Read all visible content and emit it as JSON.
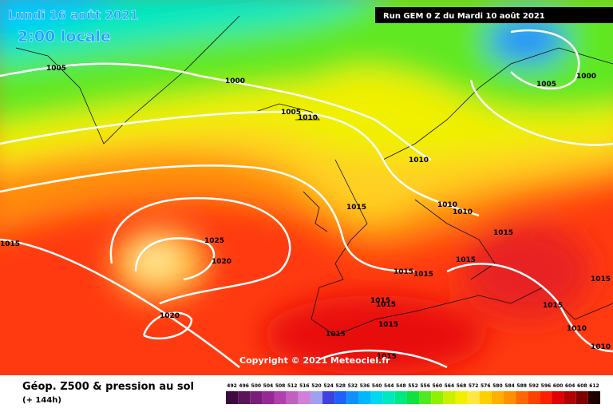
{
  "header": {
    "date": "Lundi 16 août 2021",
    "time": "2:00 locale",
    "run": "Run GEM 0 Z du Mardi 10 août 2021"
  },
  "copyright": "Copyright © 2021 Meteociel.fr",
  "isobar_labels": [
    1005,
    1000,
    1005,
    1010,
    1005,
    1000,
    1010,
    1015,
    1010,
    1010,
    1015,
    1025,
    1020,
    1015,
    1015,
    1015,
    1015,
    1015,
    1015,
    1015,
    1015,
    1020,
    1015,
    1015,
    1010,
    1015,
    1010
  ],
  "legend": {
    "title": "Géop. Z500 & pression au sol",
    "subtitle": "(+ 144h)",
    "values": [
      492,
      496,
      500,
      504,
      508,
      512,
      516,
      520,
      524,
      528,
      532,
      536,
      540,
      544,
      548,
      552,
      556,
      560,
      564,
      568,
      572,
      576,
      580,
      584,
      588,
      592,
      596,
      600,
      604,
      608,
      612
    ],
    "colors": [
      "#3c0a3c",
      "#5a145a",
      "#781e78",
      "#962896",
      "#b040b0",
      "#c060c0",
      "#d080d8",
      "#a0a0f0",
      "#4040e0",
      "#2060ff",
      "#1090ff",
      "#00b8ff",
      "#00d8f0",
      "#00e8c0",
      "#00e880",
      "#10e040",
      "#50e820",
      "#90f000",
      "#c8f000",
      "#f0f000",
      "#ffe840",
      "#ffd000",
      "#ffb000",
      "#ff9000",
      "#ff6800",
      "#ff4000",
      "#ff2000",
      "#e00000",
      "#b00000",
      "#800000",
      "#200000"
    ]
  }
}
